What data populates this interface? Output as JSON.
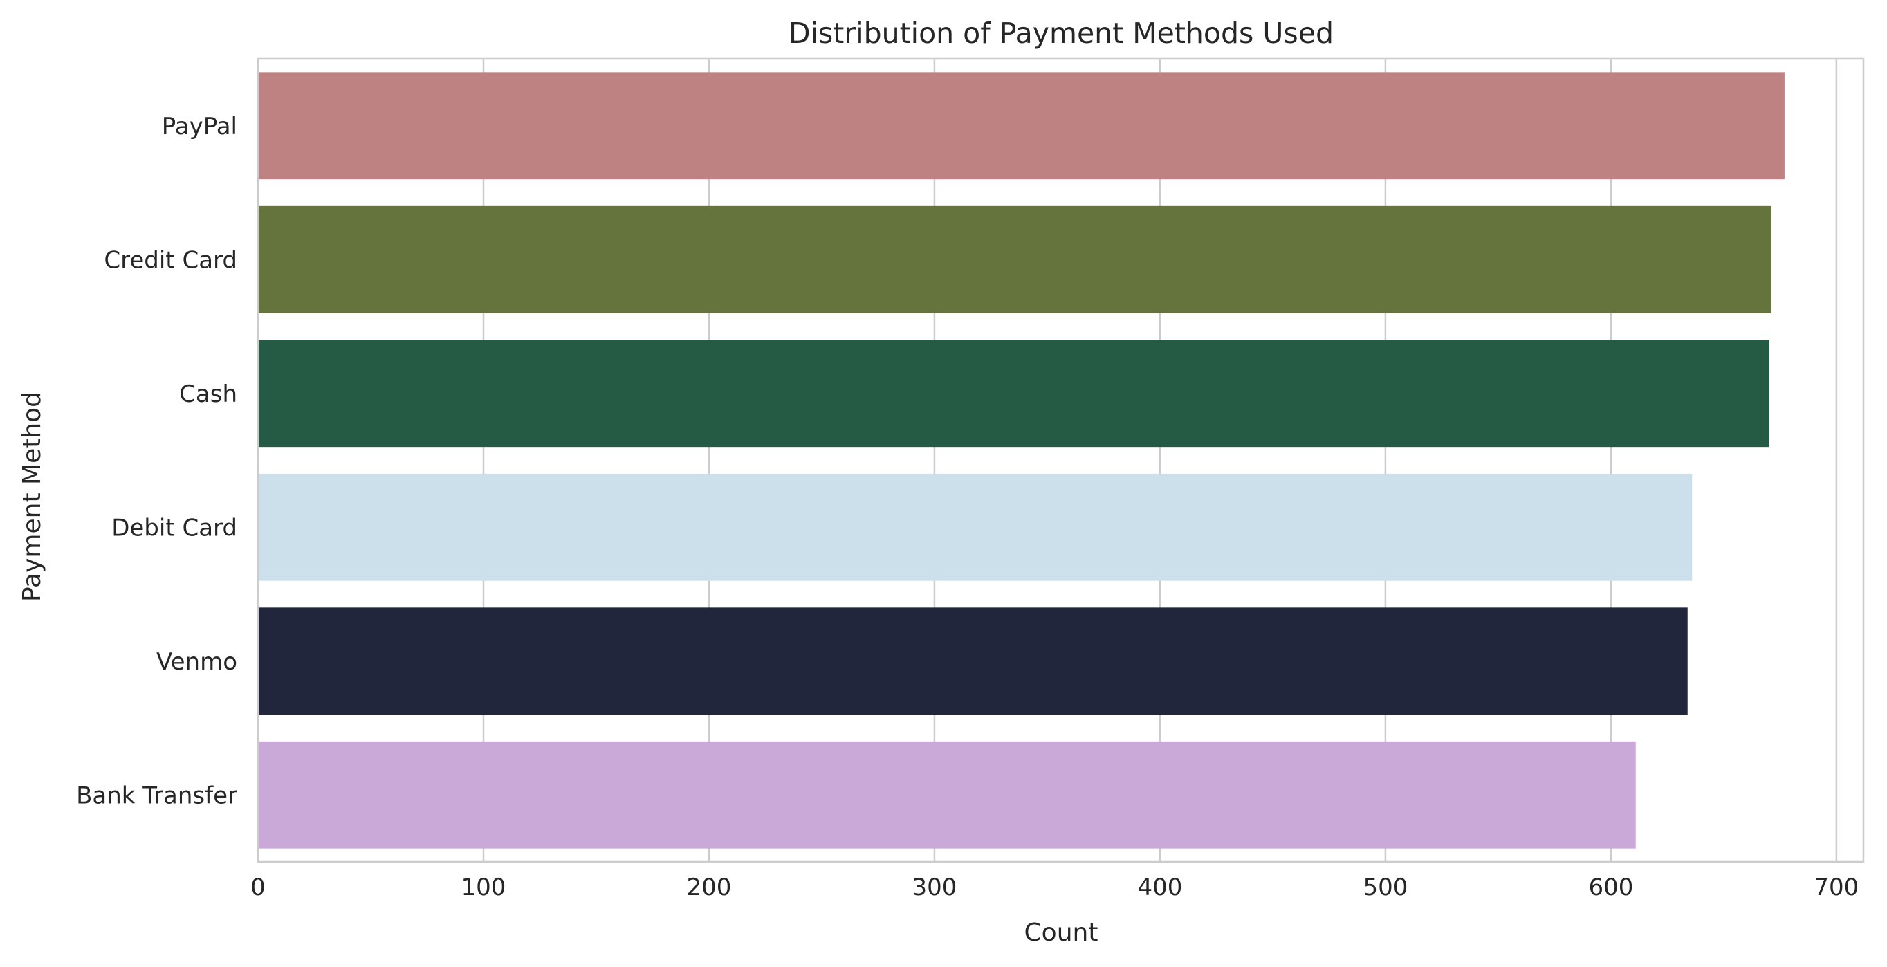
{
  "chart_data": {
    "type": "bar",
    "orientation": "horizontal",
    "title": "Distribution of Payment Methods Used",
    "xlabel": "Count",
    "ylabel": "Payment Method",
    "categories": [
      "PayPal",
      "Credit Card",
      "Cash",
      "Debit Card",
      "Venmo",
      "Bank Transfer"
    ],
    "values": [
      677,
      671,
      670,
      636,
      634,
      611
    ],
    "colors": [
      "#be8283",
      "#65733c",
      "#255b45",
      "#cce0ec",
      "#21263d",
      "#caa9d8"
    ],
    "xlim": [
      0,
      712
    ],
    "xticks": [
      0,
      100,
      200,
      300,
      400,
      500,
      600,
      700
    ],
    "grid": true,
    "legend": "none"
  }
}
